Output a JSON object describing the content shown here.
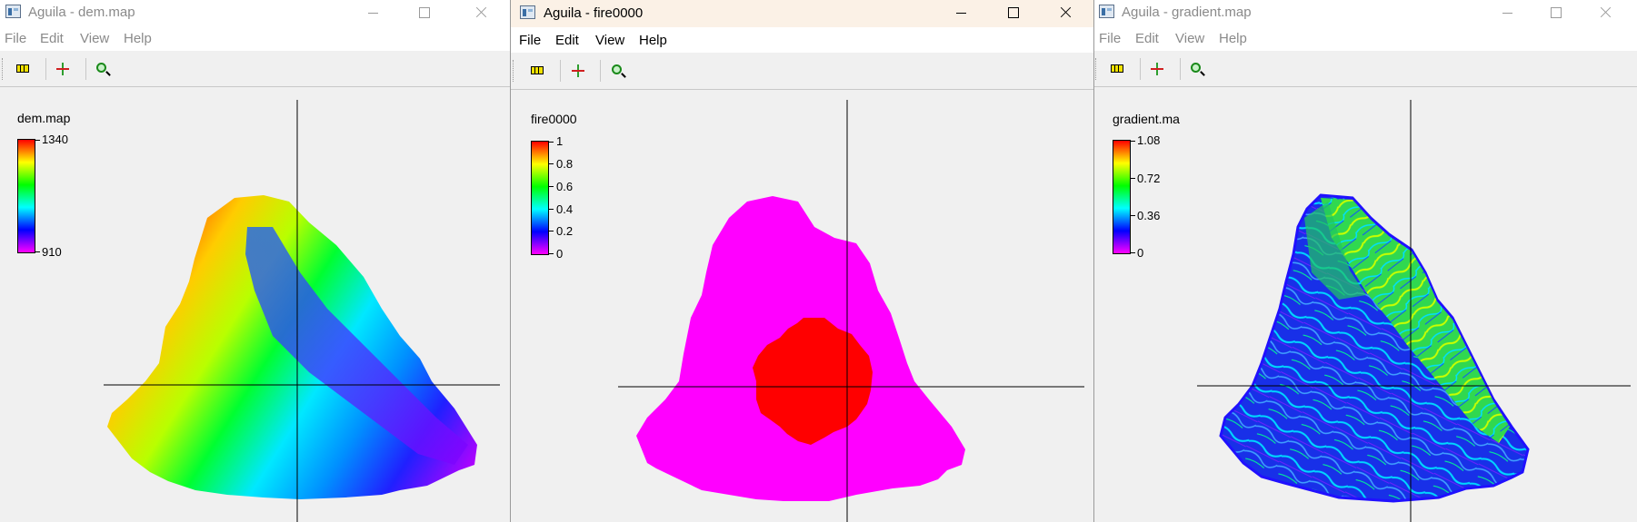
{
  "windows": {
    "dem": {
      "title": "Aguila - dem.map",
      "menu": [
        "File",
        "Edit",
        "View",
        "Help"
      ],
      "legend": {
        "name": "dem.map",
        "max_label": "1340",
        "min_label": "910"
      }
    },
    "fire": {
      "title": "Aguila - fire0000",
      "menu": [
        "File",
        "Edit",
        "View",
        "Help"
      ],
      "legend": {
        "name": "fire0000",
        "labels": [
          "1",
          "0.8",
          "0.6",
          "0.4",
          "0.2",
          "0"
        ]
      }
    },
    "gradient": {
      "title": "Aguila - gradient.map",
      "menu": [
        "File",
        "Edit",
        "View",
        "Help"
      ],
      "legend": {
        "name": "gradient.ma",
        "labels": [
          "1.08",
          "0.72",
          "0.36",
          "0"
        ]
      }
    }
  },
  "toolbar": {
    "icons": [
      "legend-icon",
      "cursor-cross-icon",
      "zoom-icon"
    ]
  },
  "colors": {
    "active_titlebar": "#fbf1e6",
    "inactive_text": "#8a8a8a",
    "fire_background": "#ff00ff",
    "fire_burned": "#ff0000"
  }
}
